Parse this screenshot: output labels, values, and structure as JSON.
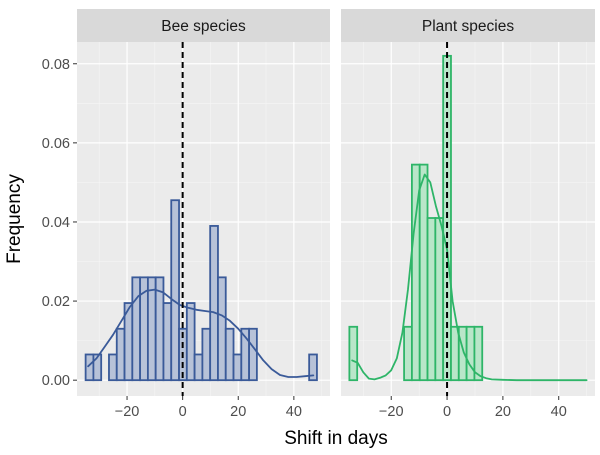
{
  "chart_data": {
    "type": "histogram",
    "xlabel": "Shift in days",
    "ylabel": "Frequency",
    "xlim": [
      -38,
      53
    ],
    "ylim": [
      -0.004,
      0.0855
    ],
    "x_ticks": [
      -20,
      0,
      20,
      40
    ],
    "x_tick_labels": [
      "−20",
      "0",
      "20",
      "40"
    ],
    "y_ticks": [
      0,
      0.02,
      0.04,
      0.06,
      0.08
    ],
    "y_tick_labels": [
      "0.00",
      "0.02",
      "0.04",
      "0.06",
      "0.08"
    ],
    "reference_line_x": 0,
    "bin_width": 2.8,
    "grid": true,
    "panels": [
      {
        "label": "Bee species",
        "color": "#3a5a99",
        "fill": "#b7c2d8",
        "bars": [
          {
            "x0": -34.9,
            "x1": -32.1,
            "y": 0.0065
          },
          {
            "x0": -32.1,
            "x1": -29.3,
            "y": 0.0065
          },
          {
            "x0": -26.5,
            "x1": -23.7,
            "y": 0.0065
          },
          {
            "x0": -23.7,
            "x1": -20.9,
            "y": 0.013
          },
          {
            "x0": -20.9,
            "x1": -18.1,
            "y": 0.0195
          },
          {
            "x0": -18.1,
            "x1": -15.3,
            "y": 0.026
          },
          {
            "x0": -15.3,
            "x1": -12.5,
            "y": 0.026
          },
          {
            "x0": -12.5,
            "x1": -9.7,
            "y": 0.026
          },
          {
            "x0": -9.7,
            "x1": -6.9,
            "y": 0.026
          },
          {
            "x0": -6.9,
            "x1": -4.1,
            "y": 0.0195
          },
          {
            "x0": -4.1,
            "x1": -1.3,
            "y": 0.0455
          },
          {
            "x0": -1.3,
            "x1": 1.5,
            "y": 0.013
          },
          {
            "x0": 1.5,
            "x1": 4.3,
            "y": 0.0195
          },
          {
            "x0": 4.3,
            "x1": 7.1,
            "y": 0.0065
          },
          {
            "x0": 7.1,
            "x1": 9.9,
            "y": 0.013
          },
          {
            "x0": 9.9,
            "x1": 12.7,
            "y": 0.039
          },
          {
            "x0": 12.7,
            "x1": 15.5,
            "y": 0.026
          },
          {
            "x0": 15.5,
            "x1": 18.3,
            "y": 0.013
          },
          {
            "x0": 18.3,
            "x1": 21.1,
            "y": 0.0065
          },
          {
            "x0": 21.1,
            "x1": 23.9,
            "y": 0.013
          },
          {
            "x0": 23.9,
            "x1": 26.7,
            "y": 0.013
          },
          {
            "x0": 45.5,
            "x1": 48.3,
            "y": 0.0065
          }
        ],
        "density": {
          "x": [
            -34,
            -31,
            -28,
            -25,
            -22,
            -19,
            -16,
            -13,
            -10,
            -7,
            -4,
            -1,
            2,
            5,
            8,
            11,
            14,
            17,
            20,
            23,
            26,
            29,
            32,
            35,
            38,
            41,
            44,
            47
          ],
          "y": [
            0.0035,
            0.0055,
            0.0085,
            0.0115,
            0.015,
            0.0185,
            0.0212,
            0.0226,
            0.0229,
            0.0222,
            0.0205,
            0.019,
            0.0183,
            0.0178,
            0.0175,
            0.0172,
            0.0164,
            0.015,
            0.013,
            0.0105,
            0.0078,
            0.005,
            0.0028,
            0.0013,
            0.0008,
            0.0008,
            0.001,
            0.0012
          ]
        }
      },
      {
        "label": "Plant species",
        "color": "#2eb568",
        "fill": "#b9e6c9",
        "bars": [
          {
            "x0": -35.0,
            "x1": -32.2,
            "y": 0.0135
          },
          {
            "x0": -15.4,
            "x1": -12.6,
            "y": 0.0135
          },
          {
            "x0": -12.6,
            "x1": -9.8,
            "y": 0.0545
          },
          {
            "x0": -9.8,
            "x1": -7.0,
            "y": 0.0545
          },
          {
            "x0": -7.0,
            "x1": -4.2,
            "y": 0.041
          },
          {
            "x0": -4.2,
            "x1": -1.4,
            "y": 0.041
          },
          {
            "x0": -1.4,
            "x1": 1.4,
            "y": 0.082
          },
          {
            "x0": 1.4,
            "x1": 4.2,
            "y": 0.0135
          },
          {
            "x0": 4.2,
            "x1": 7.0,
            "y": 0.0135
          },
          {
            "x0": 7.0,
            "x1": 9.8,
            "y": 0.0135
          },
          {
            "x0": 9.8,
            "x1": 12.6,
            "y": 0.0135
          }
        ],
        "density": {
          "x": [
            -34,
            -32,
            -30,
            -28,
            -26,
            -24,
            -22,
            -20,
            -18,
            -16,
            -14,
            -12,
            -10,
            -8,
            -6,
            -4,
            -2,
            0,
            2,
            4,
            6,
            8,
            10,
            12,
            14,
            16,
            20,
            25,
            30,
            40,
            50
          ],
          "y": [
            0.005,
            0.0044,
            0.002,
            0.0004,
            0.0002,
            0.0006,
            0.0012,
            0.0025,
            0.0055,
            0.012,
            0.023,
            0.037,
            0.048,
            0.052,
            0.05,
            0.044,
            0.039,
            0.033,
            0.02,
            0.012,
            0.007,
            0.004,
            0.002,
            0.001,
            0.0005,
            0.0002,
            0.0001,
            0.0,
            0.0,
            0.0,
            0.0
          ]
        }
      }
    ]
  }
}
